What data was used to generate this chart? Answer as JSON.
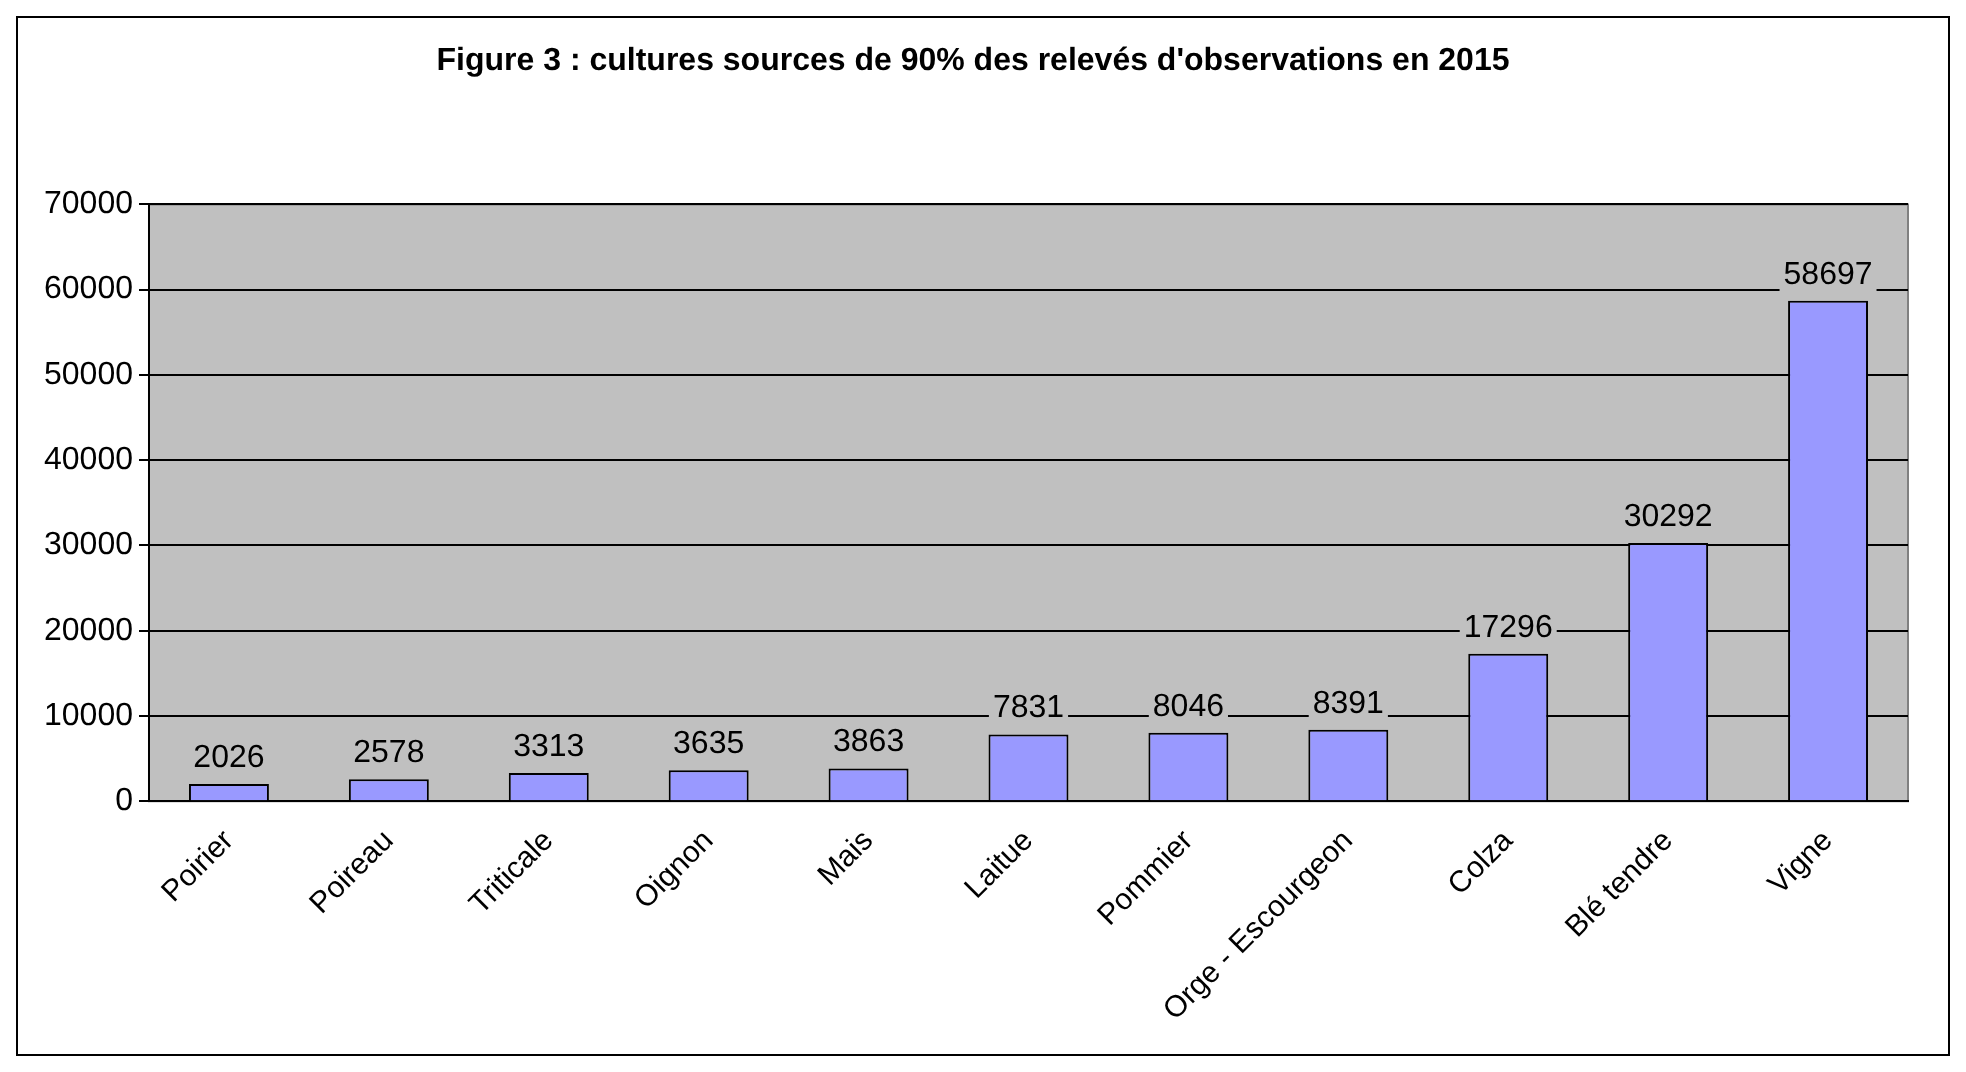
{
  "chart_data": {
    "type": "bar",
    "title": "Figure 3 : cultures sources de 90% des relevés d'observations en 2015",
    "categories": [
      "Poirier",
      "Poireau",
      "Triticale",
      "Oignon",
      "Mais",
      "Laitue",
      "Pommier",
      "Orge - Escourgeon",
      "Colza",
      "Blé tendre",
      "Vigne"
    ],
    "values": [
      2026,
      2578,
      3313,
      3635,
      3863,
      7831,
      8046,
      8391,
      17296,
      30292,
      58697
    ],
    "color": "#9999ff",
    "ylim": [
      0,
      70000
    ],
    "yticks": [
      0,
      10000,
      20000,
      30000,
      40000,
      50000,
      60000,
      70000
    ],
    "grid": "y",
    "data_labels": true,
    "legend": false
  }
}
